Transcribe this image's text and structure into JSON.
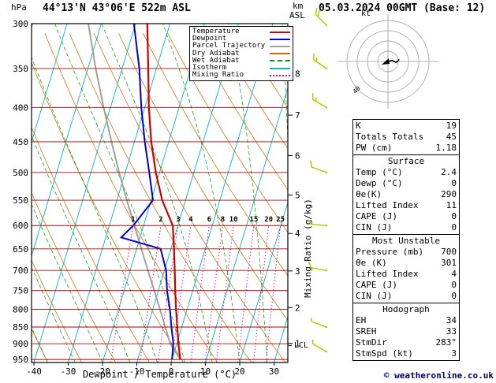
{
  "title": "44°13'N 43°06'E 522m ASL",
  "datetime": "05.03.2024 00GMT (Base: 12)",
  "copyright": "© weatheronline.co.uk",
  "axes": {
    "pressure_unit": "hPa",
    "km_unit": "km",
    "asl_unit": "ASL",
    "x_label": "Dewpoint / Temperature (°C)",
    "right_label": "Mixing Ratio (g/kg)",
    "lcl_label": "LCL",
    "pressure_ticks": [
      300,
      350,
      400,
      450,
      500,
      550,
      600,
      650,
      700,
      750,
      800,
      850,
      900,
      950
    ],
    "temp_ticks": [
      -40,
      -30,
      -20,
      -10,
      0,
      10,
      20,
      30
    ],
    "km_ticks": [
      1,
      2,
      3,
      4,
      5,
      6,
      7,
      8
    ]
  },
  "legend": [
    {
      "label": "Temperature",
      "color": "#cc0000",
      "style": "solid"
    },
    {
      "label": "Dewpoint",
      "color": "#0000cc",
      "style": "solid"
    },
    {
      "label": "Parcel Trajectory",
      "color": "#a0a0a0",
      "style": "solid"
    },
    {
      "label": "Dry Adiabat",
      "color": "#cc6600",
      "style": "solid"
    },
    {
      "label": "Wet Adiabat",
      "color": "#009900",
      "style": "dashed"
    },
    {
      "label": "Isotherm",
      "color": "#00b8b8",
      "style": "solid"
    },
    {
      "label": "Mixing Ratio",
      "color": "#dd0099",
      "style": "dotted"
    }
  ],
  "hodograph": {
    "unit_label": "kt",
    "ring_label_40": "40",
    "rings_kt": [
      10,
      20,
      30,
      40
    ],
    "trace_u_v_kt": [
      [
        0,
        0
      ],
      [
        4,
        1
      ],
      [
        8,
        -1
      ],
      [
        11,
        2
      ]
    ]
  },
  "stats": {
    "summary": {
      "rows": [
        [
          "K",
          "19"
        ],
        [
          "Totals Totals",
          "45"
        ],
        [
          "PW (cm)",
          "1.18"
        ]
      ]
    },
    "surface": {
      "header": "Surface",
      "rows": [
        [
          "Temp (°C)",
          "2.4"
        ],
        [
          "Dewp (°C)",
          "0"
        ],
        [
          "θe(K)",
          "290"
        ],
        [
          "Lifted Index",
          "11"
        ],
        [
          "CAPE (J)",
          "0"
        ],
        [
          "CIN (J)",
          "0"
        ]
      ]
    },
    "most_unstable": {
      "header": "Most Unstable",
      "rows": [
        [
          "Pressure (mb)",
          "700"
        ],
        [
          "θe (K)",
          "301"
        ],
        [
          "Lifted Index",
          "4"
        ],
        [
          "CAPE (J)",
          "0"
        ],
        [
          "CIN (J)",
          "0"
        ]
      ]
    },
    "hodograph": {
      "header": "Hodograph",
      "rows": [
        [
          "EH",
          "34"
        ],
        [
          "SREH",
          "33"
        ],
        [
          "StmDir",
          "283°"
        ],
        [
          "StmSpd (kt)",
          "3"
        ]
      ]
    }
  },
  "chart_data": {
    "type": "line",
    "subtype": "skew-t log-p sounding",
    "pressure_axis_hPa": {
      "min": 300,
      "max": 960,
      "scale": "log"
    },
    "temp_axis_C": {
      "min": -40,
      "max": 35
    },
    "temperature_profile": {
      "pressure_hPa": [
        950,
        900,
        850,
        800,
        750,
        700,
        650,
        600,
        550,
        500,
        450,
        400,
        350,
        300
      ],
      "temp_C": [
        2.4,
        0.5,
        -1.3,
        -3.2,
        -5.1,
        -7.0,
        -9.1,
        -11.5,
        -16.8,
        -21.1,
        -25.1,
        -28.8,
        -32.4,
        -36.6
      ]
    },
    "dewpoint_profile": {
      "pressure_hPa": [
        950,
        900,
        850,
        800,
        750,
        700,
        650,
        625,
        600,
        550,
        500,
        450,
        400,
        350,
        300
      ],
      "temp_C": [
        0,
        -1.0,
        -3.0,
        -5.0,
        -7.5,
        -9.5,
        -13.0,
        -25.5,
        -23.0,
        -19.5,
        -23.0,
        -27.0,
        -31.0,
        -35.0,
        -40.5
      ]
    },
    "parcel_trajectory": {
      "pressure_hPa": [
        950,
        900,
        850,
        800,
        750,
        700,
        650,
        600,
        550,
        500,
        450,
        400,
        350,
        300
      ],
      "temp_C": [
        2.4,
        -1.9,
        -4.8,
        -7.9,
        -11.2,
        -14.8,
        -18.6,
        -22.7,
        -27.1,
        -31.8,
        -36.7,
        -42.0,
        -47.7,
        -53.8
      ]
    },
    "mixing_ratio_lines_g_kg": [
      1,
      2,
      3,
      4,
      6,
      8,
      10,
      15,
      20,
      25
    ],
    "wind_barbs": [
      {
        "p": 300,
        "dir": 315,
        "spd": 20
      },
      {
        "p": 350,
        "dir": 305,
        "spd": 15
      },
      {
        "p": 400,
        "dir": 300,
        "spd": 15
      },
      {
        "p": 500,
        "dir": 290,
        "spd": 10
      },
      {
        "p": 600,
        "dir": 275,
        "spd": 5
      },
      {
        "p": 700,
        "dir": 280,
        "spd": 10
      },
      {
        "p": 850,
        "dir": 290,
        "spd": 5
      },
      {
        "p": 925,
        "dir": 300,
        "spd": 5
      }
    ],
    "lcl_pressure_hPa": 905
  }
}
